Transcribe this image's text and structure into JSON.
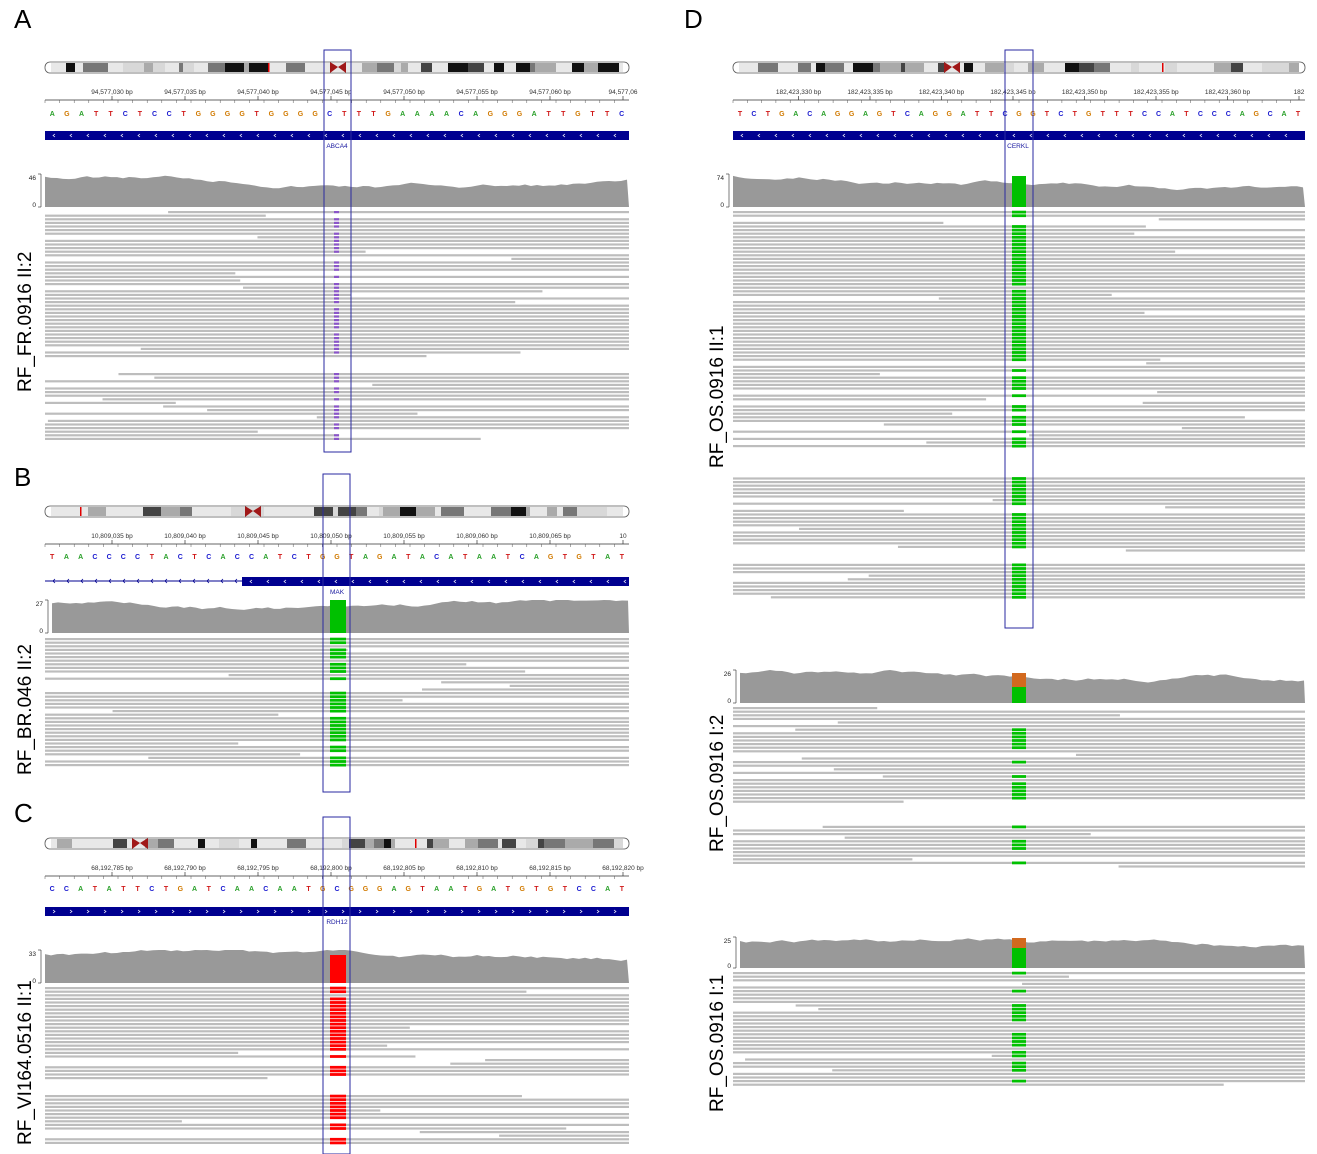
{
  "panels": [
    {
      "label": "A",
      "sample": "RF_FR.0916 II:2",
      "gene": "ABCA4",
      "ticks": [
        "94,577,030 bp",
        "94,577,035 bp",
        "94,577,040 bp",
        "94,577,045 bp",
        "94,577,050 bp",
        "94,577,055 bp",
        "94,577,060 bp",
        "94,577,06"
      ],
      "sequence": "AGATTCTCCTGGGGTGGGGCTTTGAAAACAGGGATTGTTC",
      "coverage_max": "46",
      "coverage_min": "0",
      "variant": "deletion",
      "variant_color": "#8a55c8"
    },
    {
      "label": "B",
      "sample": "RF_BR.046 II:2",
      "gene": "MAK",
      "ticks": [
        "10,809,035 bp",
        "10,809,040 bp",
        "10,809,045 bp",
        "10,809,050 bp",
        "10,809,055 bp",
        "10,809,060 bp",
        "10,809,065 bp",
        "10"
      ],
      "sequence": "TAACCCCTACTCACCATCTGGTAGATACATAATCAGTGTAT",
      "coverage_max": "27",
      "coverage_min": "0",
      "variant": "A>G homozygous",
      "variant_color": "#00c000"
    },
    {
      "label": "C",
      "sample": "RF_VI164.0516 II:1",
      "gene": "RDH12",
      "ticks": [
        "68,192,785 bp",
        "68,192,790 bp",
        "68,192,795 bp",
        "68,192,800 bp",
        "68,192,805 bp",
        "68,192,810 bp",
        "68,192,815 bp",
        "68,192,820 bp"
      ],
      "sequence": "CCATATTCTGATCAACAATGCGGGAGTAATGATGTGTCCAT",
      "coverage_max": "33",
      "coverage_min": "0",
      "variant": "T homozygous",
      "variant_color": "#ff0000"
    },
    {
      "label": "D",
      "gene": "CERKL",
      "ticks": [
        "182,423,330 bp",
        "182,423,335 bp",
        "182,423,340 bp",
        "182,423,345 bp",
        "182,423,350 bp",
        "182,423,355 bp",
        "182,423,360 bp",
        "182"
      ],
      "sequence": "TCTGACAGGAGTCAGGATTCGGTCTGTTTCCATCCCAGCAT",
      "tracks": [
        {
          "sample": "RF_OS.0916 II:1",
          "coverage_max": "74",
          "coverage_min": "0",
          "zygosity": "homozygous"
        },
        {
          "sample": "RF_OS.0916 I:2",
          "coverage_max": "26",
          "coverage_min": "0",
          "zygosity": "heterozygous"
        },
        {
          "sample": "RF_OS.0916 I:1",
          "coverage_max": "25",
          "coverage_min": "0",
          "zygosity": "heterozygous"
        }
      ],
      "variant_color": "#00c000",
      "ref_color": "#d2691e"
    }
  ],
  "colors": {
    "base_A": "#2aa02a",
    "base_C": "#1a1ad0",
    "base_G": "#d17a00",
    "base_T": "#d01818",
    "gene_track": "#000090",
    "coverage": "#999999",
    "read": "#bdbdbd",
    "highlight_box": "#2a2aa0"
  }
}
